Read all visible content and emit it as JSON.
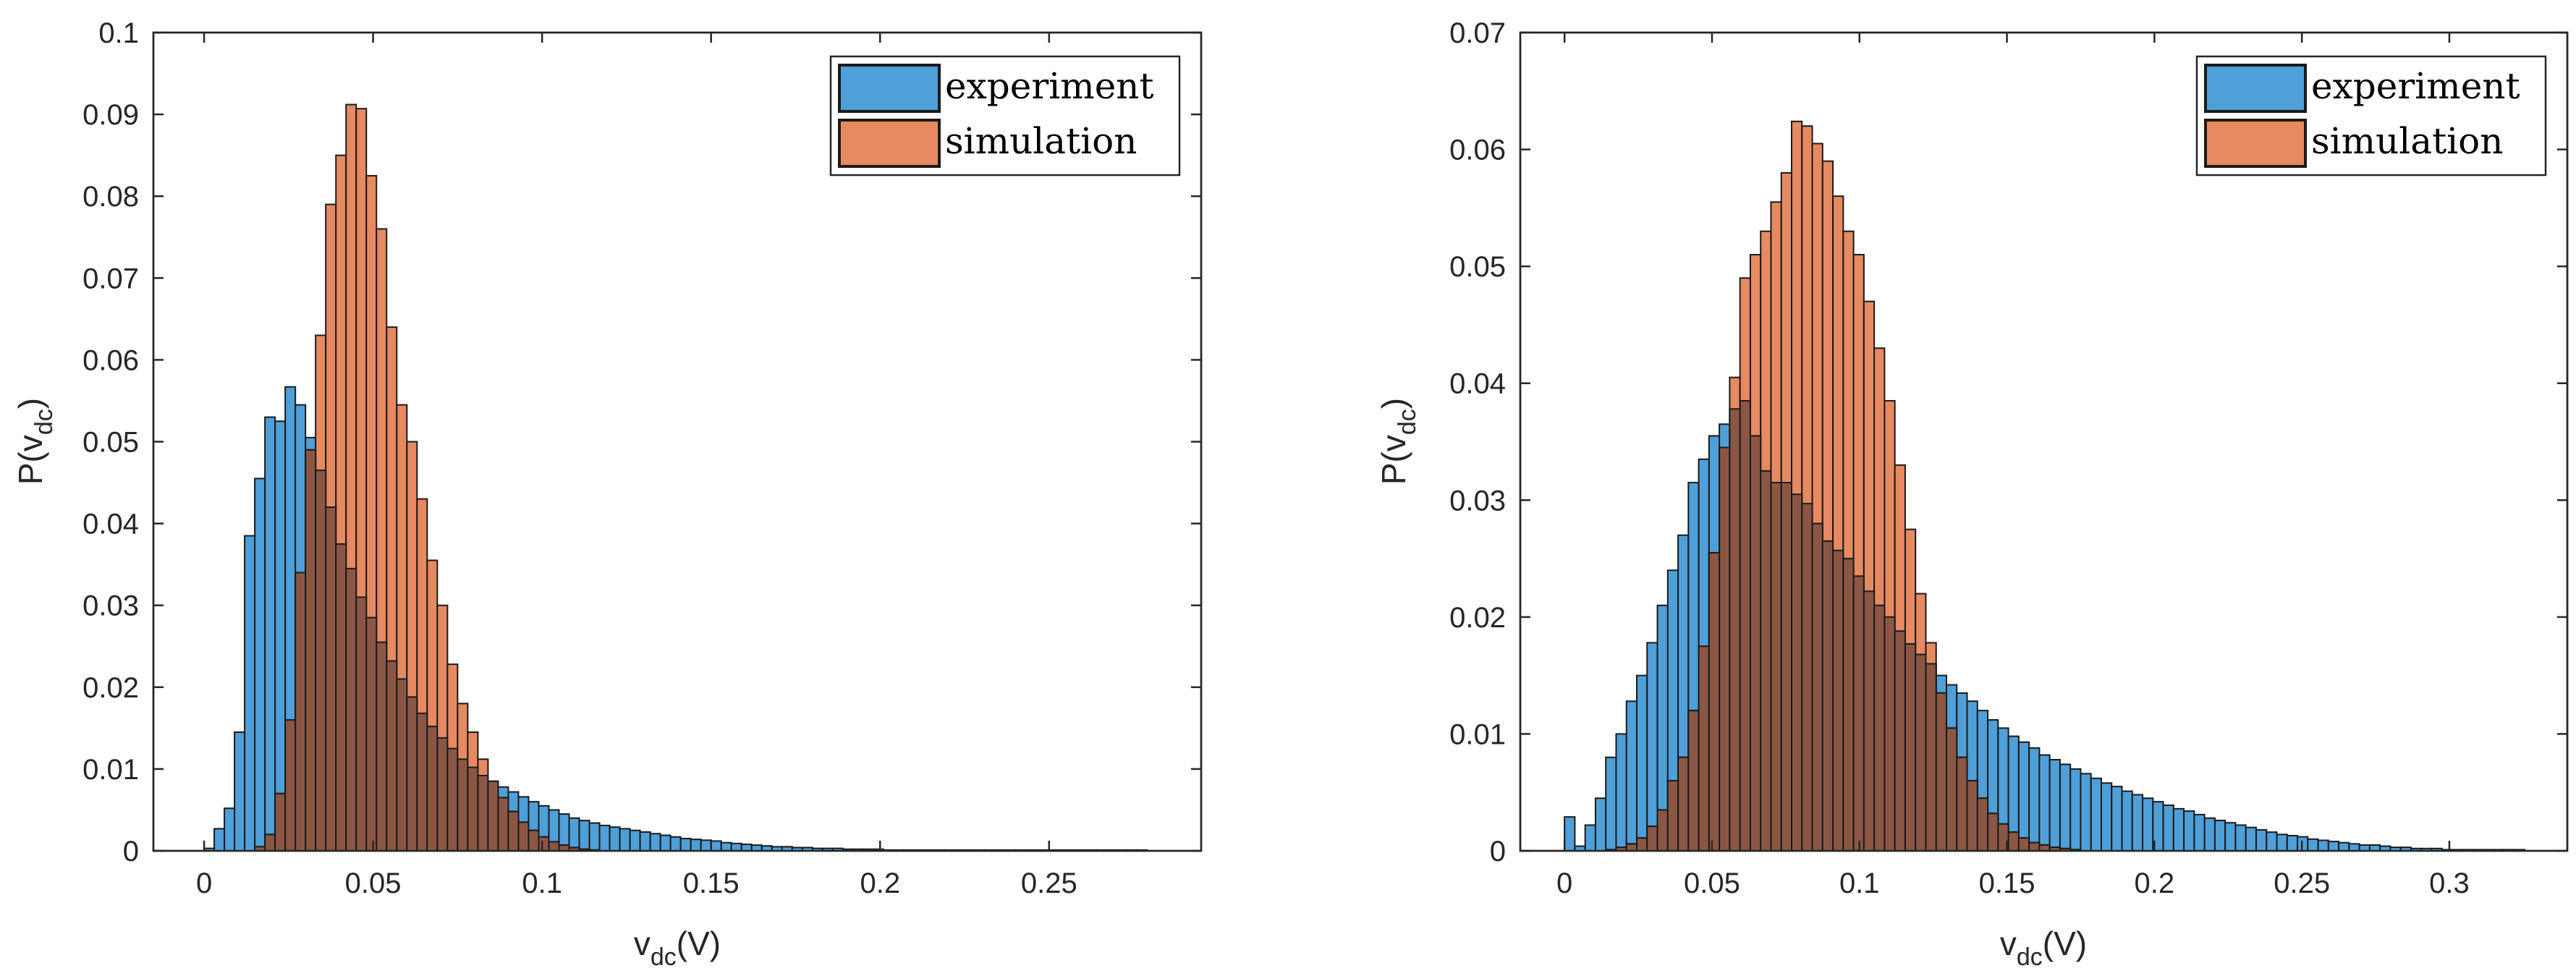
{
  "figure": {
    "colors": {
      "experiment": "#4f9fd8",
      "simulation": "#e68a62",
      "overlap": "#8b5744",
      "edge": "#1a1a1a",
      "axis": "#262626"
    }
  },
  "chart_data": [
    {
      "type": "bar",
      "panel": "left",
      "xlabel_main": "v",
      "xlabel_sub": "dc",
      "xlabel_unit": "(V)",
      "ylabel_main": "P(v",
      "ylabel_sub": "dc",
      "ylabel_close": ")",
      "xlim": [
        -0.015,
        0.295
      ],
      "ylim": [
        0,
        0.1
      ],
      "xticks": [
        0,
        0.05,
        0.1,
        0.15,
        0.2,
        0.25
      ],
      "xtick_labels": [
        "0",
        "0.05",
        "0.1",
        "0.15",
        "0.2",
        "0.25"
      ],
      "yticks": [
        0,
        0.01,
        0.02,
        0.03,
        0.04,
        0.05,
        0.06,
        0.07,
        0.08,
        0.09,
        0.1
      ],
      "ytick_labels": [
        "0",
        "0.01",
        "0.02",
        "0.03",
        "0.04",
        "0.05",
        "0.06",
        "0.07",
        "0.08",
        "0.09",
        "0.1"
      ],
      "legend_position": "top-right",
      "series": [
        {
          "name": "experiment",
          "x0": 0.0,
          "bin_width": 0.003,
          "values": [
            0.0003,
            0.0027,
            0.0052,
            0.0145,
            0.0385,
            0.0455,
            0.053,
            0.0525,
            0.0567,
            0.0545,
            0.0505,
            0.0465,
            0.042,
            0.0375,
            0.0345,
            0.031,
            0.0285,
            0.0255,
            0.0232,
            0.021,
            0.0188,
            0.0168,
            0.0152,
            0.0138,
            0.0125,
            0.0112,
            0.0102,
            0.0092,
            0.0085,
            0.0078,
            0.0072,
            0.0066,
            0.006,
            0.0055,
            0.005,
            0.0045,
            0.004,
            0.0037,
            0.0034,
            0.0031,
            0.0029,
            0.0027,
            0.0025,
            0.0023,
            0.0021,
            0.0019,
            0.0017,
            0.0015,
            0.0014,
            0.0013,
            0.0012,
            0.001,
            0.0009,
            0.0008,
            0.0007,
            0.0006,
            0.0005,
            0.0005,
            0.0004,
            0.0004,
            0.0003,
            0.0003,
            0.0003,
            0.0002,
            0.0002,
            0.0002,
            0.0002,
            0.0001,
            0.0001,
            0.0001,
            0.0001,
            0.0001,
            0.0001,
            0.0001,
            0.0001,
            0.0001,
            0.0001,
            0.0001,
            0.0001,
            0.0001,
            0.0001,
            0.0001,
            0.0001,
            0.0001,
            0.0001,
            0.0001,
            0.0001,
            0.0001,
            0.0001,
            0.0001,
            0.0001,
            0.0001,
            0.0001
          ]
        },
        {
          "name": "simulation",
          "x0": 0.015,
          "bin_width": 0.003,
          "values": [
            0.0005,
            0.002,
            0.007,
            0.016,
            0.034,
            0.049,
            0.063,
            0.079,
            0.085,
            0.0912,
            0.0907,
            0.0825,
            0.076,
            0.064,
            0.0545,
            0.05,
            0.043,
            0.0355,
            0.03,
            0.0228,
            0.018,
            0.0145,
            0.0112,
            0.0085,
            0.0065,
            0.0048,
            0.0035,
            0.0025,
            0.0017,
            0.0011,
            0.0007,
            0.0004,
            0.0002,
            0.0001
          ]
        }
      ]
    },
    {
      "type": "bar",
      "panel": "right",
      "xlabel_main": "v",
      "xlabel_sub": "dc",
      "xlabel_unit": "(V)",
      "ylabel_main": "P(v",
      "ylabel_sub": "dc",
      "ylabel_close": ")",
      "xlim": [
        -0.015,
        0.34
      ],
      "ylim": [
        0,
        0.07
      ],
      "xticks": [
        0,
        0.05,
        0.1,
        0.15,
        0.2,
        0.25,
        0.3
      ],
      "xtick_labels": [
        "0",
        "0.05",
        "0.1",
        "0.15",
        "0.2",
        "0.25",
        "0.3"
      ],
      "yticks": [
        0,
        0.01,
        0.02,
        0.03,
        0.04,
        0.05,
        0.06,
        0.07
      ],
      "ytick_labels": [
        "0",
        "0.01",
        "0.02",
        "0.03",
        "0.04",
        "0.05",
        "0.06",
        "0.07"
      ],
      "legend_position": "top-right",
      "series": [
        {
          "name": "experiment",
          "x0": 0.0,
          "bin_width": 0.0035,
          "values": [
            0.0029,
            0.0004,
            0.0022,
            0.0045,
            0.008,
            0.01,
            0.0128,
            0.015,
            0.0178,
            0.021,
            0.024,
            0.027,
            0.0315,
            0.0335,
            0.0355,
            0.0365,
            0.0378,
            0.0385,
            0.0355,
            0.0325,
            0.0315,
            0.0315,
            0.0305,
            0.0297,
            0.028,
            0.0265,
            0.0257,
            0.025,
            0.0235,
            0.0222,
            0.021,
            0.02,
            0.0188,
            0.0177,
            0.0168,
            0.016,
            0.015,
            0.0142,
            0.0135,
            0.0128,
            0.012,
            0.0112,
            0.0105,
            0.0098,
            0.0093,
            0.0088,
            0.0082,
            0.0078,
            0.0074,
            0.007,
            0.0066,
            0.0062,
            0.0058,
            0.0055,
            0.0051,
            0.0048,
            0.0045,
            0.0042,
            0.0039,
            0.0036,
            0.0034,
            0.0031,
            0.0028,
            0.0026,
            0.0024,
            0.0022,
            0.002,
            0.0018,
            0.0016,
            0.0014,
            0.0013,
            0.0012,
            0.001,
            0.0009,
            0.0008,
            0.0007,
            0.0006,
            0.0005,
            0.0005,
            0.0004,
            0.0003,
            0.0003,
            0.0002,
            0.0002,
            0.0002,
            0.0001,
            0.0001,
            0.0001,
            0.0001,
            0.0001,
            0.0001,
            0.0001,
            0.0001
          ]
        },
        {
          "name": "simulation",
          "x0": 0.014,
          "bin_width": 0.0035,
          "values": [
            0.0001,
            0.0003,
            0.0006,
            0.0011,
            0.0021,
            0.0035,
            0.006,
            0.008,
            0.012,
            0.0175,
            0.0255,
            0.0345,
            0.0405,
            0.049,
            0.051,
            0.053,
            0.0555,
            0.058,
            0.0624,
            0.062,
            0.0605,
            0.059,
            0.056,
            0.053,
            0.051,
            0.047,
            0.043,
            0.0385,
            0.033,
            0.0275,
            0.022,
            0.0178,
            0.0135,
            0.0105,
            0.008,
            0.006,
            0.0045,
            0.0032,
            0.0023,
            0.0016,
            0.0011,
            0.0007,
            0.0005,
            0.0003,
            0.0002,
            0.0001
          ]
        }
      ]
    }
  ]
}
